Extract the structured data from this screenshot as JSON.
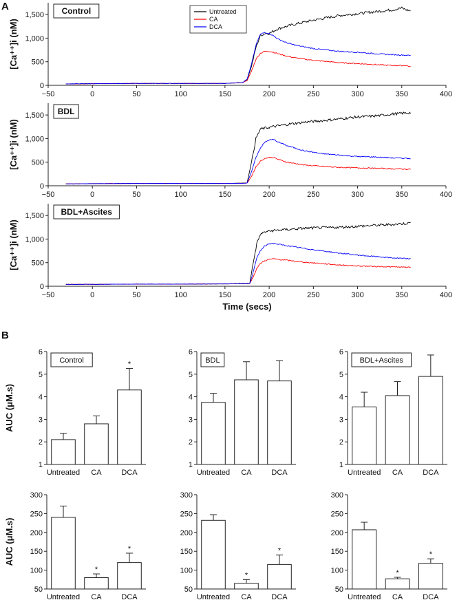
{
  "panel_labels": {
    "A": "A",
    "B": "B"
  },
  "legend": [
    {
      "name": "Untreated",
      "color": "#000000"
    },
    {
      "name": "CA",
      "color": "#ff0000"
    },
    {
      "name": "DCA",
      "color": "#0000ff"
    }
  ],
  "chart_data": [
    {
      "type": "line",
      "id": "A1",
      "title": "Control",
      "ylabel": "[Ca⁺⁺]i (nM)",
      "xlabel": "",
      "xlim": [
        -50,
        400
      ],
      "ylim": [
        0,
        1750
      ],
      "xticks": [
        "−50",
        "0",
        "50",
        "100",
        "150",
        "200",
        "250",
        "300",
        "350",
        "400"
      ],
      "yticks": [
        "0",
        "500",
        "1,000",
        "1,500"
      ],
      "series": [
        {
          "name": "Untreated",
          "color": "#000000",
          "x": [
            -30,
            0,
            50,
            100,
            150,
            170,
            175,
            180,
            185,
            190,
            195,
            200,
            205,
            210,
            220,
            230,
            250,
            280,
            300,
            320,
            340,
            350,
            355,
            360
          ],
          "y": [
            30,
            35,
            40,
            40,
            40,
            60,
            120,
            400,
            800,
            1050,
            1100,
            1100,
            1150,
            1200,
            1250,
            1300,
            1380,
            1480,
            1520,
            1560,
            1600,
            1640,
            1600,
            1580
          ]
        },
        {
          "name": "CA",
          "color": "#ff0000",
          "x": [
            -30,
            0,
            50,
            100,
            150,
            170,
            175,
            180,
            185,
            190,
            195,
            200,
            205,
            210,
            220,
            230,
            250,
            280,
            300,
            320,
            340,
            355,
            360
          ],
          "y": [
            30,
            35,
            40,
            40,
            40,
            60,
            100,
            300,
            550,
            680,
            720,
            720,
            700,
            670,
            620,
            580,
            530,
            480,
            460,
            440,
            420,
            420,
            390
          ]
        },
        {
          "name": "DCA",
          "color": "#0000ff",
          "x": [
            -30,
            0,
            50,
            100,
            150,
            170,
            175,
            180,
            185,
            190,
            195,
            200,
            205,
            210,
            220,
            230,
            250,
            280,
            300,
            320,
            340,
            355,
            360
          ],
          "y": [
            30,
            35,
            40,
            40,
            40,
            60,
            130,
            450,
            850,
            1080,
            1120,
            1100,
            1050,
            980,
            900,
            850,
            780,
            720,
            700,
            670,
            650,
            640,
            630
          ]
        }
      ]
    },
    {
      "type": "line",
      "id": "A2",
      "title": "BDL",
      "ylabel": "[Ca⁺⁺]i (nM)",
      "xlabel": "",
      "xlim": [
        -50,
        400
      ],
      "ylim": [
        0,
        1750
      ],
      "xticks": [
        "−50",
        "0",
        "50",
        "100",
        "150",
        "200",
        "250",
        "300",
        "350",
        "400"
      ],
      "yticks": [
        "0",
        "500",
        "1,000",
        "1,500"
      ],
      "series": [
        {
          "name": "Untreated",
          "color": "#000000",
          "x": [
            -30,
            0,
            50,
            100,
            150,
            175,
            180,
            185,
            190,
            195,
            200,
            210,
            220,
            240,
            260,
            280,
            300,
            320,
            340,
            360
          ],
          "y": [
            40,
            45,
            50,
            50,
            50,
            60,
            500,
            1000,
            1200,
            1220,
            1240,
            1270,
            1300,
            1350,
            1380,
            1420,
            1460,
            1480,
            1520,
            1550
          ]
        },
        {
          "name": "CA",
          "color": "#ff0000",
          "x": [
            -30,
            0,
            50,
            100,
            150,
            175,
            180,
            185,
            190,
            195,
            200,
            205,
            210,
            220,
            240,
            260,
            280,
            300,
            320,
            340,
            360
          ],
          "y": [
            40,
            45,
            50,
            50,
            50,
            55,
            200,
            400,
            520,
            580,
            600,
            600,
            560,
            500,
            440,
            410,
            390,
            380,
            370,
            360,
            350
          ]
        },
        {
          "name": "DCA",
          "color": "#0000ff",
          "x": [
            -30,
            0,
            50,
            100,
            150,
            175,
            180,
            185,
            190,
            195,
            200,
            205,
            210,
            220,
            240,
            260,
            280,
            300,
            320,
            340,
            360
          ],
          "y": [
            40,
            45,
            50,
            50,
            50,
            55,
            300,
            600,
            800,
            920,
            970,
            980,
            930,
            850,
            740,
            680,
            650,
            620,
            610,
            590,
            580
          ]
        }
      ]
    },
    {
      "type": "line",
      "id": "A3",
      "title": "BDL+Ascites",
      "ylabel": "[Ca⁺⁺]i (nM)",
      "xlabel": "Time (secs)",
      "xlim": [
        -50,
        400
      ],
      "ylim": [
        0,
        1750
      ],
      "xticks": [
        "−50",
        "0",
        "50",
        "100",
        "150",
        "200",
        "250",
        "300",
        "350",
        "400"
      ],
      "yticks": [
        "0",
        "500",
        "1,000",
        "1,500"
      ],
      "series": [
        {
          "name": "Untreated",
          "color": "#000000",
          "x": [
            -30,
            0,
            50,
            100,
            150,
            178,
            182,
            186,
            190,
            195,
            200,
            210,
            220,
            240,
            260,
            280,
            300,
            320,
            340,
            360
          ],
          "y": [
            40,
            40,
            45,
            45,
            50,
            60,
            500,
            900,
            1100,
            1150,
            1170,
            1190,
            1200,
            1230,
            1240,
            1250,
            1270,
            1290,
            1310,
            1340
          ]
        },
        {
          "name": "CA",
          "color": "#ff0000",
          "x": [
            -30,
            0,
            50,
            100,
            150,
            178,
            182,
            186,
            190,
            195,
            200,
            205,
            210,
            220,
            240,
            260,
            280,
            300,
            320,
            340,
            360
          ],
          "y": [
            40,
            40,
            45,
            45,
            50,
            55,
            200,
            380,
            480,
            540,
            570,
            580,
            570,
            550,
            510,
            480,
            450,
            430,
            420,
            410,
            400
          ]
        },
        {
          "name": "DCA",
          "color": "#0000ff",
          "x": [
            -30,
            0,
            50,
            100,
            150,
            178,
            182,
            186,
            190,
            195,
            200,
            205,
            210,
            220,
            240,
            260,
            280,
            300,
            320,
            340,
            360
          ],
          "y": [
            40,
            40,
            45,
            45,
            50,
            55,
            300,
            600,
            750,
            850,
            900,
            910,
            890,
            860,
            800,
            750,
            700,
            660,
            630,
            600,
            580
          ]
        }
      ]
    },
    {
      "type": "bar",
      "id": "B1",
      "title": "Control",
      "ylabel": "AUC (μM.s)",
      "categories": [
        "Untreated",
        "CA",
        "DCA"
      ],
      "values": [
        2.1,
        2.8,
        4.3
      ],
      "errors": [
        0.28,
        0.35,
        0.95
      ],
      "significance": [
        "",
        "",
        "*"
      ],
      "ylim": [
        1,
        6
      ],
      "yticks": [
        "1",
        "2",
        "3",
        "4",
        "5",
        "6"
      ]
    },
    {
      "type": "bar",
      "id": "B2",
      "title": "BDL",
      "ylabel": "",
      "categories": [
        "Untreated",
        "CA",
        "DCA"
      ],
      "values": [
        3.75,
        4.75,
        4.7
      ],
      "errors": [
        0.4,
        0.8,
        0.9
      ],
      "significance": [
        "",
        "",
        ""
      ],
      "ylim": [
        1,
        6
      ],
      "yticks": [
        "1",
        "2",
        "3",
        "4",
        "5",
        "6"
      ]
    },
    {
      "type": "bar",
      "id": "B3",
      "title": "BDL+Ascites",
      "ylabel": "",
      "categories": [
        "Untreated",
        "CA",
        "DCA"
      ],
      "values": [
        3.55,
        4.05,
        4.9
      ],
      "errors": [
        0.65,
        0.62,
        0.95
      ],
      "significance": [
        "",
        "",
        ""
      ],
      "ylim": [
        1,
        6
      ],
      "yticks": [
        "1",
        "2",
        "3",
        "4",
        "5",
        "6"
      ]
    },
    {
      "type": "bar",
      "id": "B4",
      "title": "",
      "ylabel": "AUC (μM.s)",
      "categories": [
        "Untreated",
        "CA",
        "DCA"
      ],
      "values": [
        240,
        80,
        120
      ],
      "errors": [
        30,
        10,
        25
      ],
      "significance": [
        "",
        "*",
        "*"
      ],
      "ylim": [
        50,
        300
      ],
      "yticks": [
        "50",
        "100",
        "150",
        "200",
        "250",
        "300"
      ]
    },
    {
      "type": "bar",
      "id": "B5",
      "title": "",
      "ylabel": "",
      "categories": [
        "Untreated",
        "CA",
        "DCA"
      ],
      "values": [
        232,
        65,
        115
      ],
      "errors": [
        15,
        10,
        25
      ],
      "significance": [
        "",
        "*",
        "*"
      ],
      "ylim": [
        50,
        300
      ],
      "yticks": [
        "50",
        "100",
        "150",
        "200",
        "250",
        "300"
      ]
    },
    {
      "type": "bar",
      "id": "B6",
      "title": "",
      "ylabel": "",
      "categories": [
        "Untreated",
        "CA",
        "DCA"
      ],
      "values": [
        207,
        77,
        118
      ],
      "errors": [
        20,
        4,
        12
      ],
      "significance": [
        "",
        "*",
        "*"
      ],
      "ylim": [
        50,
        300
      ],
      "yticks": [
        "50",
        "100",
        "150",
        "200",
        "250",
        "300"
      ]
    }
  ]
}
